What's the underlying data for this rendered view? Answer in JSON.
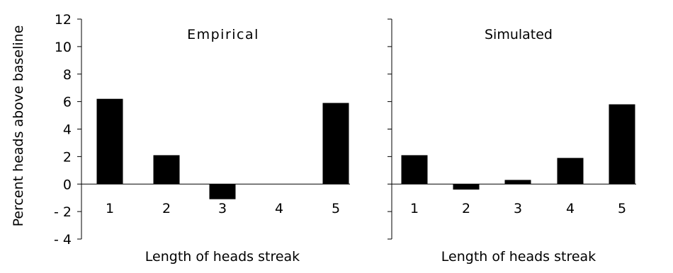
{
  "ylabel": "Percent heads above baseline",
  "chart_data": [
    {
      "type": "bar",
      "title": "Empirical",
      "xlabel": "Length of heads streak",
      "ylabel": "Percent heads above baseline",
      "categories": [
        "1",
        "2",
        "3",
        "4",
        "5"
      ],
      "values": [
        6.2,
        2.1,
        -1.1,
        0,
        5.9
      ],
      "ylim": [
        -4,
        12
      ],
      "yticks": [
        "12",
        "10",
        "8",
        "6",
        "4",
        "2",
        "0",
        "- 2",
        "- 4"
      ],
      "grid": false,
      "bar_color": "#000000"
    },
    {
      "type": "bar",
      "title": "Simulated",
      "xlabel": "Length of heads streak",
      "categories": [
        "1",
        "2",
        "3",
        "4",
        "5"
      ],
      "values": [
        2.1,
        -0.4,
        0.3,
        1.9,
        5.8
      ],
      "ylim": [
        -4,
        12
      ],
      "grid": false,
      "bar_color": "#000000"
    }
  ]
}
